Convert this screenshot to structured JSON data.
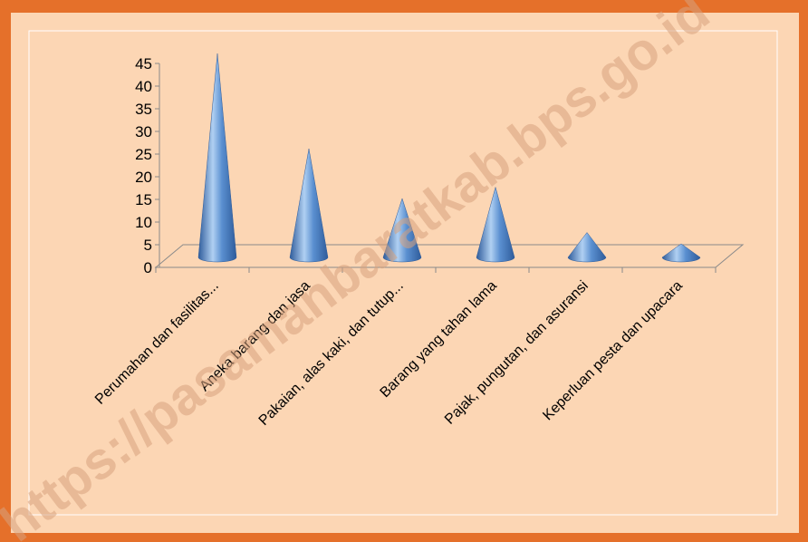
{
  "colors": {
    "outer_frame": "#e5702a",
    "background": "#fcd6b4",
    "cone_dark": "#2f5c9b",
    "cone_mid": "#5a8fd0",
    "cone_light": "#b0d0f2",
    "axis_line": "#8a8a8a",
    "watermark": "#d7a27e"
  },
  "watermark": {
    "text": "https://pasamanbaratkab.bps.go.id"
  },
  "chart_data": {
    "type": "bar",
    "style": "3d-cone",
    "title": "",
    "xlabel": "",
    "ylabel": "",
    "ylim": [
      0,
      45
    ],
    "yticks": [
      0,
      5,
      10,
      15,
      20,
      25,
      30,
      35,
      40,
      45
    ],
    "grid": false,
    "legend": "none",
    "categories": [
      "Perumahan dan fasilitas...",
      "Aneka barang dan jasa",
      "Pakaian, alas kaki, dan tutup...",
      "Barang yang tahan lama",
      "Pajak, pungutan, dan  asuransi",
      "Keperluan pesta dan upacara"
    ],
    "values": [
      45,
      24,
      13,
      15.5,
      5.5,
      3
    ]
  }
}
